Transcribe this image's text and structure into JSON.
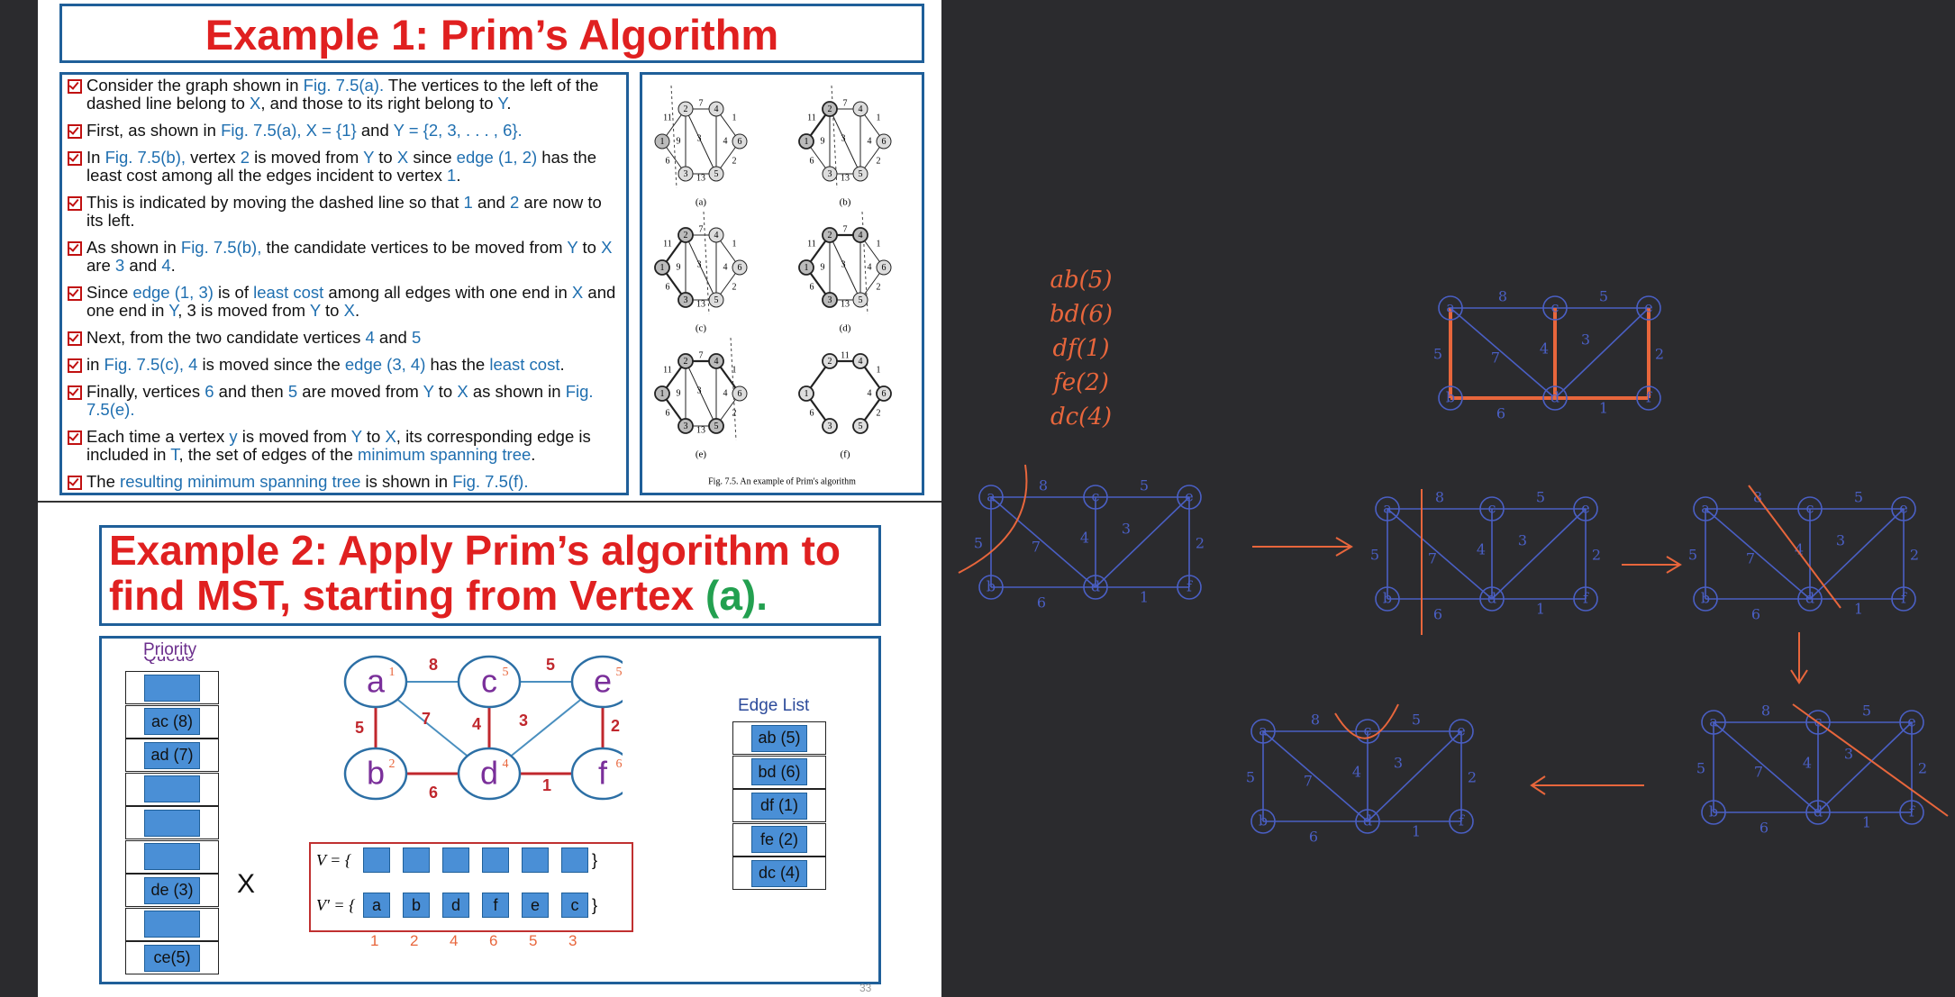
{
  "slide": {
    "example1_title": "Example 1: Prim’s Algorithm",
    "bullets": [
      [
        {
          "t": "Consider the graph shown in "
        },
        {
          "t": "Fig. 7.5(a).",
          "h": true
        },
        {
          "t": " The vertices to the left of the dashed line belong to "
        },
        {
          "t": "X",
          "h": true
        },
        {
          "t": ", and those to its right belong to "
        },
        {
          "t": "Y",
          "h": true
        },
        {
          "t": "."
        }
      ],
      [
        {
          "t": "First, as shown in "
        },
        {
          "t": "Fig. 7.5(a), X = {1} ",
          "h": true
        },
        {
          "t": "and "
        },
        {
          "t": "Y = {2, 3, . . . , 6}.",
          "h": true
        }
      ],
      [
        {
          "t": "In "
        },
        {
          "t": "Fig. 7.5(b),",
          "h": true
        },
        {
          "t": " vertex "
        },
        {
          "t": "2",
          "h": true
        },
        {
          "t": " is moved from "
        },
        {
          "t": "Y",
          "h": true
        },
        {
          "t": " to "
        },
        {
          "t": "X",
          "h": true
        },
        {
          "t": " since "
        },
        {
          "t": "edge (1, 2)",
          "h": true
        },
        {
          "t": " has the least cost among all the edges incident to vertex "
        },
        {
          "t": "1",
          "h": true
        },
        {
          "t": "."
        }
      ],
      [
        {
          "t": "This is indicated by moving the dashed line so that "
        },
        {
          "t": "1",
          "h": true
        },
        {
          "t": " and "
        },
        {
          "t": "2",
          "h": true
        },
        {
          "t": " are now to its left."
        }
      ],
      [
        {
          "t": "As shown in "
        },
        {
          "t": "Fig. 7.5(b),",
          "h": true
        },
        {
          "t": " the candidate vertices to be moved from "
        },
        {
          "t": "Y",
          "h": true
        },
        {
          "t": " to "
        },
        {
          "t": "X",
          "h": true
        },
        {
          "t": " are "
        },
        {
          "t": "3",
          "h": true
        },
        {
          "t": " and "
        },
        {
          "t": "4",
          "h": true
        },
        {
          "t": "."
        }
      ],
      [
        {
          "t": "Since "
        },
        {
          "t": "edge (1, 3)",
          "h": true
        },
        {
          "t": " is of "
        },
        {
          "t": "least cost",
          "h": true
        },
        {
          "t": " among all edges with one end in "
        },
        {
          "t": "X",
          "h": true
        },
        {
          "t": " and one end in "
        },
        {
          "t": "Y",
          "h": true
        },
        {
          "t": ", 3 is moved from "
        },
        {
          "t": "Y",
          "h": true
        },
        {
          "t": " to "
        },
        {
          "t": "X",
          "h": true
        },
        {
          "t": "."
        }
      ],
      [
        {
          "t": "Next, from the two candidate vertices "
        },
        {
          "t": "4",
          "h": true
        },
        {
          "t": " and "
        },
        {
          "t": "5",
          "h": true
        }
      ],
      [
        {
          "t": "in "
        },
        {
          "t": "Fig. 7.5(c), 4",
          "h": true
        },
        {
          "t": " is moved since the "
        },
        {
          "t": "edge (3, 4)",
          "h": true
        },
        {
          "t": " has the "
        },
        {
          "t": "least cost",
          "h": true
        },
        {
          "t": "."
        }
      ],
      [
        {
          "t": "Finally, vertices "
        },
        {
          "t": "6",
          "h": true
        },
        {
          "t": " and then "
        },
        {
          "t": "5",
          "h": true
        },
        {
          "t": " are moved from "
        },
        {
          "t": "Y",
          "h": true
        },
        {
          "t": " to "
        },
        {
          "t": "X",
          "h": true
        },
        {
          "t": " as shown in "
        },
        {
          "t": "Fig. 7.5(e).",
          "h": true
        }
      ],
      [
        {
          "t": "Each time a vertex "
        },
        {
          "t": "y",
          "h": true
        },
        {
          "t": " is moved from "
        },
        {
          "t": "Y",
          "h": true
        },
        {
          "t": " to "
        },
        {
          "t": "X",
          "h": true
        },
        {
          "t": ", its corresponding edge is included in "
        },
        {
          "t": "T",
          "h": true
        },
        {
          "t": ", the set of edges of the "
        },
        {
          "t": "minimum spanning tree",
          "h": true
        },
        {
          "t": "."
        }
      ],
      [
        {
          "t": "The "
        },
        {
          "t": "resulting minimum spanning tree",
          "h": true
        },
        {
          "t": " is shown in "
        },
        {
          "t": "Fig. 7.5(f).",
          "h": true
        }
      ]
    ],
    "figure": {
      "panel_labels": [
        "(a)",
        "(b)",
        "(c)",
        "(d)",
        "(e)",
        "(f)"
      ],
      "caption": "Fig. 7.5.  An example of Prim's algorithm",
      "vertex_labels": [
        "1",
        "2",
        "3",
        "4",
        "5",
        "6"
      ],
      "edge_weights": [
        "11",
        "6",
        "9",
        "7",
        "3",
        "13",
        "4",
        "1",
        "2"
      ]
    },
    "example2_title_line1": "Example 2: Apply Prim’s algorithm to",
    "example2_title_line2_pre": "find MST, starting from Vertex ",
    "example2_title_line2_vertex": "(a).",
    "priority_label": "Priority",
    "priority_partial": "Queue",
    "priority_cells": [
      "",
      "ac (8)",
      "ad (7)",
      "",
      "",
      "",
      "de (3)",
      "",
      "ce(5)"
    ],
    "priority_mark": "X",
    "graph": {
      "vertices": [
        "a",
        "c",
        "e",
        "b",
        "d",
        "f"
      ],
      "weights": {
        "ac": "8",
        "ce": "5",
        "ab": "5",
        "ad": "7",
        "cd": "4",
        "de": "3",
        "ef": "2",
        "bd": "6",
        "df": "1"
      },
      "annotations": {
        "a": "1",
        "c": "5",
        "e": "5",
        "b": "2",
        "d": "4",
        "f": "6"
      }
    },
    "edge_list_label": "Edge List",
    "edge_list": [
      "ab (5)",
      "bd (6)",
      "df (1)",
      "fe (2)",
      "dc (4)"
    ],
    "v_label": "V = {",
    "v_close": "}",
    "vprime_label": "V′ = {",
    "vprime_values": [
      "a",
      "b",
      "d",
      "f",
      "e",
      "c"
    ],
    "vprime_order": [
      "1",
      "2",
      "4",
      "6",
      "5",
      "3"
    ],
    "page_number": "33"
  },
  "notes": {
    "edge_list": [
      "ab(5)",
      "bd(6)",
      "df(1)",
      "fe(2)",
      "dc(4)"
    ],
    "vertices": [
      "a",
      "c",
      "e",
      "b",
      "d",
      "f"
    ],
    "weights": [
      "8",
      "5",
      "5",
      "7",
      "4",
      "3",
      "2",
      "6",
      "1"
    ]
  },
  "colors": {
    "title_red": "#e02020",
    "border_blue": "#1f5f99",
    "highlight": "#1f6fb0",
    "ink_blue": "#4a5fc4",
    "ink_orange": "#e8663c",
    "background": "#2b2b2e"
  }
}
